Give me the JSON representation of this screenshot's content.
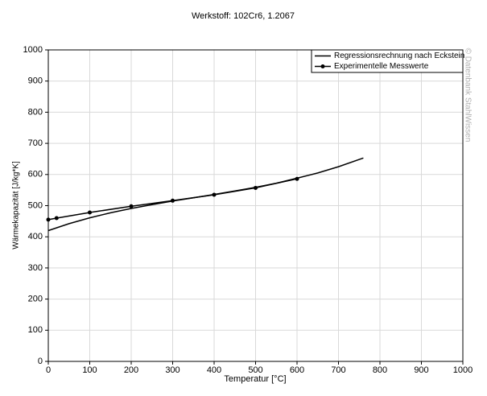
{
  "chart_data": {
    "type": "line",
    "title": "Werkstoff: 102Cr6, 1.2067",
    "x_label": "Temperatur [°C]",
    "y_label": "Wärmekapazität [J/kg*K]",
    "watermark": "© Datenbank StahlWissen",
    "xlim": [
      0,
      1000
    ],
    "xticks": [
      0,
      100,
      200,
      300,
      400,
      500,
      600,
      700,
      800,
      900,
      1000
    ],
    "ylim": [
      0,
      1000
    ],
    "yticks": [
      0,
      100,
      200,
      300,
      400,
      500,
      600,
      700,
      800,
      900,
      1000
    ],
    "grid": true,
    "legend": "top-right",
    "series": [
      {
        "name": "Regressionsrechnung nach Eckstein",
        "color": "#000000",
        "markers": false,
        "x": [
          0,
          50,
          100,
          150,
          200,
          250,
          300,
          350,
          400,
          450,
          500,
          550,
          600,
          650,
          700,
          760
        ],
        "values": [
          420,
          442,
          461,
          477,
          491,
          503,
          515,
          525,
          536,
          547,
          559,
          572,
          588,
          605,
          625,
          653
        ]
      },
      {
        "name": "Experimentelle Messwerte",
        "color": "#000000",
        "markers": true,
        "x": [
          0,
          20,
          100,
          200,
          300,
          400,
          500,
          600
        ],
        "values": [
          455,
          460,
          478,
          498,
          516,
          535,
          557,
          586
        ]
      }
    ]
  }
}
